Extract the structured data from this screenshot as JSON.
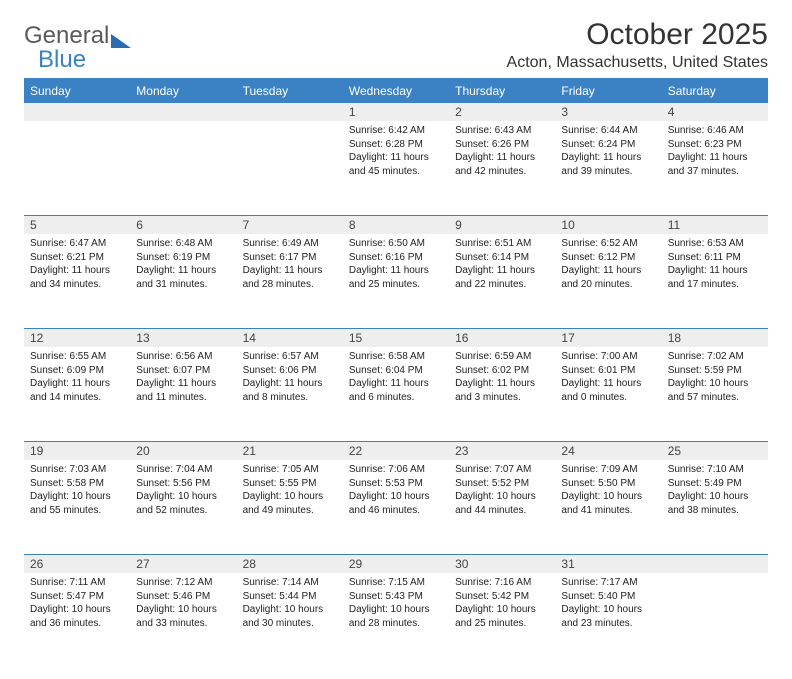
{
  "brand": {
    "text1": "General",
    "text2": "Blue"
  },
  "title": "October 2025",
  "location": "Acton, Massachusetts, United States",
  "colors": {
    "accent": "#3b82c4",
    "header_bg": "#3b82c4",
    "header_fg": "#ffffff",
    "daynum_bg": "#eeeeee",
    "text": "#222222",
    "logo_gray": "#5a5a5a"
  },
  "day_headers": [
    "Sunday",
    "Monday",
    "Tuesday",
    "Wednesday",
    "Thursday",
    "Friday",
    "Saturday"
  ],
  "weeks": [
    [
      null,
      null,
      null,
      {
        "n": "1",
        "sr": "6:42 AM",
        "ss": "6:28 PM",
        "dl": "11 hours and 45 minutes."
      },
      {
        "n": "2",
        "sr": "6:43 AM",
        "ss": "6:26 PM",
        "dl": "11 hours and 42 minutes."
      },
      {
        "n": "3",
        "sr": "6:44 AM",
        "ss": "6:24 PM",
        "dl": "11 hours and 39 minutes."
      },
      {
        "n": "4",
        "sr": "6:46 AM",
        "ss": "6:23 PM",
        "dl": "11 hours and 37 minutes."
      }
    ],
    [
      {
        "n": "5",
        "sr": "6:47 AM",
        "ss": "6:21 PM",
        "dl": "11 hours and 34 minutes."
      },
      {
        "n": "6",
        "sr": "6:48 AM",
        "ss": "6:19 PM",
        "dl": "11 hours and 31 minutes."
      },
      {
        "n": "7",
        "sr": "6:49 AM",
        "ss": "6:17 PM",
        "dl": "11 hours and 28 minutes."
      },
      {
        "n": "8",
        "sr": "6:50 AM",
        "ss": "6:16 PM",
        "dl": "11 hours and 25 minutes."
      },
      {
        "n": "9",
        "sr": "6:51 AM",
        "ss": "6:14 PM",
        "dl": "11 hours and 22 minutes."
      },
      {
        "n": "10",
        "sr": "6:52 AM",
        "ss": "6:12 PM",
        "dl": "11 hours and 20 minutes."
      },
      {
        "n": "11",
        "sr": "6:53 AM",
        "ss": "6:11 PM",
        "dl": "11 hours and 17 minutes."
      }
    ],
    [
      {
        "n": "12",
        "sr": "6:55 AM",
        "ss": "6:09 PM",
        "dl": "11 hours and 14 minutes."
      },
      {
        "n": "13",
        "sr": "6:56 AM",
        "ss": "6:07 PM",
        "dl": "11 hours and 11 minutes."
      },
      {
        "n": "14",
        "sr": "6:57 AM",
        "ss": "6:06 PM",
        "dl": "11 hours and 8 minutes."
      },
      {
        "n": "15",
        "sr": "6:58 AM",
        "ss": "6:04 PM",
        "dl": "11 hours and 6 minutes."
      },
      {
        "n": "16",
        "sr": "6:59 AM",
        "ss": "6:02 PM",
        "dl": "11 hours and 3 minutes."
      },
      {
        "n": "17",
        "sr": "7:00 AM",
        "ss": "6:01 PM",
        "dl": "11 hours and 0 minutes."
      },
      {
        "n": "18",
        "sr": "7:02 AM",
        "ss": "5:59 PM",
        "dl": "10 hours and 57 minutes."
      }
    ],
    [
      {
        "n": "19",
        "sr": "7:03 AM",
        "ss": "5:58 PM",
        "dl": "10 hours and 55 minutes."
      },
      {
        "n": "20",
        "sr": "7:04 AM",
        "ss": "5:56 PM",
        "dl": "10 hours and 52 minutes."
      },
      {
        "n": "21",
        "sr": "7:05 AM",
        "ss": "5:55 PM",
        "dl": "10 hours and 49 minutes."
      },
      {
        "n": "22",
        "sr": "7:06 AM",
        "ss": "5:53 PM",
        "dl": "10 hours and 46 minutes."
      },
      {
        "n": "23",
        "sr": "7:07 AM",
        "ss": "5:52 PM",
        "dl": "10 hours and 44 minutes."
      },
      {
        "n": "24",
        "sr": "7:09 AM",
        "ss": "5:50 PM",
        "dl": "10 hours and 41 minutes."
      },
      {
        "n": "25",
        "sr": "7:10 AM",
        "ss": "5:49 PM",
        "dl": "10 hours and 38 minutes."
      }
    ],
    [
      {
        "n": "26",
        "sr": "7:11 AM",
        "ss": "5:47 PM",
        "dl": "10 hours and 36 minutes."
      },
      {
        "n": "27",
        "sr": "7:12 AM",
        "ss": "5:46 PM",
        "dl": "10 hours and 33 minutes."
      },
      {
        "n": "28",
        "sr": "7:14 AM",
        "ss": "5:44 PM",
        "dl": "10 hours and 30 minutes."
      },
      {
        "n": "29",
        "sr": "7:15 AM",
        "ss": "5:43 PM",
        "dl": "10 hours and 28 minutes."
      },
      {
        "n": "30",
        "sr": "7:16 AM",
        "ss": "5:42 PM",
        "dl": "10 hours and 25 minutes."
      },
      {
        "n": "31",
        "sr": "7:17 AM",
        "ss": "5:40 PM",
        "dl": "10 hours and 23 minutes."
      },
      null
    ]
  ],
  "labels": {
    "sunrise": "Sunrise:",
    "sunset": "Sunset:",
    "daylight": "Daylight:"
  }
}
